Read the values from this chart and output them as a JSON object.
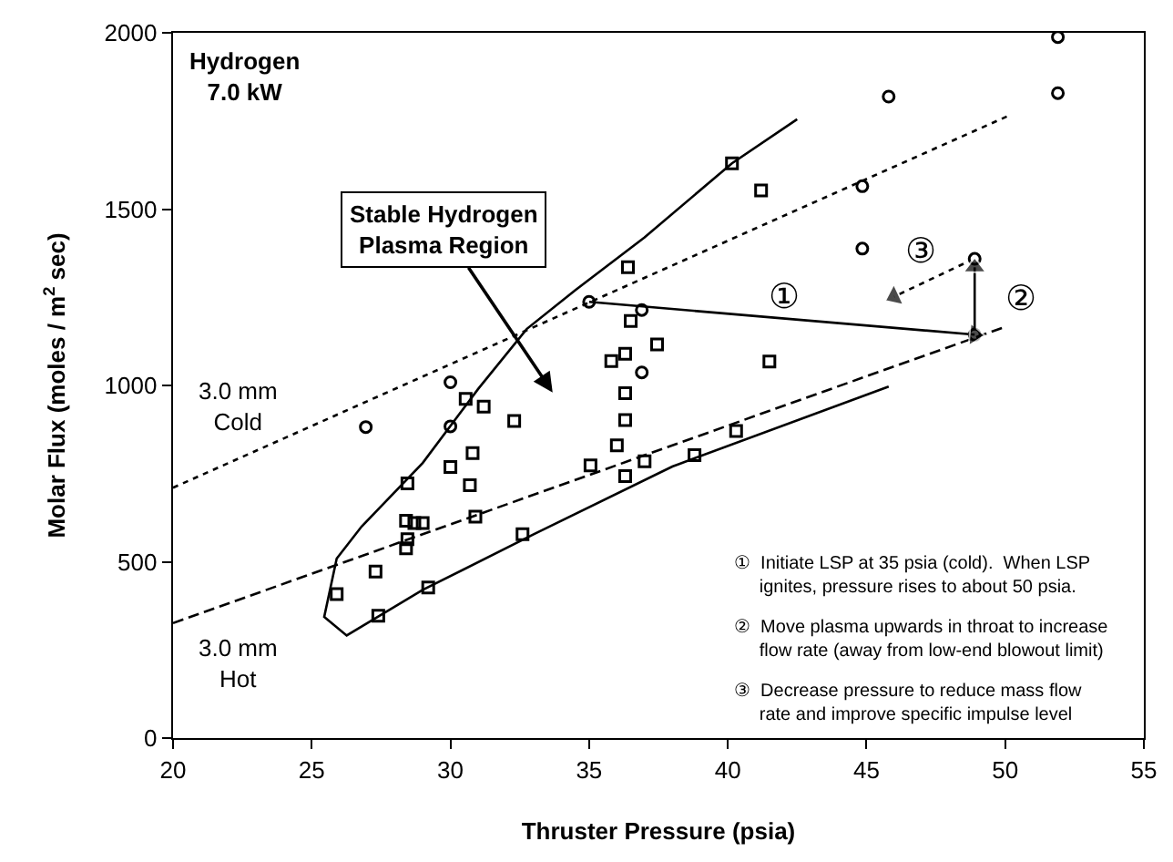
{
  "chart_data": {
    "type": "scatter",
    "xlabel": "Thruster Pressure (psia)",
    "ylabel": "Molar Flux (moles / m$^{2}$ sec)",
    "xlim": [
      20,
      55
    ],
    "xticks": [
      20,
      25,
      30,
      35,
      40,
      45,
      50,
      55
    ],
    "ylim": [
      0,
      2000
    ],
    "yticks": [
      0,
      500,
      1000,
      1500,
      2000
    ],
    "grid": false,
    "series": [
      {
        "marker": "square",
        "color": "#000000",
        "x": [
          25.9,
          27.3,
          27.4,
          28.45,
          28.4,
          28.7,
          29.0,
          28.45,
          28.4,
          29.2,
          30.0,
          30.7,
          30.8,
          30.9,
          32.3,
          32.6,
          30.55,
          31.2,
          35.05,
          36.3,
          36.0,
          36.3,
          37.0,
          38.8,
          40.3,
          36.3,
          36.3,
          36.4,
          36.5,
          35.8,
          37.45,
          41.5,
          40.15,
          41.2
        ],
        "values": [
          408,
          472,
          347,
          722,
          616,
          610,
          610,
          564,
          538,
          427,
          769,
          717,
          808,
          628,
          899,
          578,
          962,
          940,
          773,
          743,
          830,
          902,
          785,
          802,
          871,
          978,
          1090,
          1335,
          1183,
          1069,
          1116,
          1068,
          1630,
          1553
        ]
      },
      {
        "marker": "circle",
        "color": "#000000",
        "x": [
          26.95,
          30.0,
          30.0,
          35.0,
          36.9,
          36.9,
          44.85,
          44.85,
          45.8,
          51.9,
          51.9,
          48.9,
          48.9
        ],
        "values": [
          882,
          884,
          1009,
          1237,
          1214,
          1037,
          1388,
          1565,
          1819,
          1829,
          1988,
          1359,
          1144
        ]
      },
      {
        "type": "line",
        "line_style": "dotted",
        "marker": "none",
        "color": "#000000",
        "x": [
          20,
          50.1
        ],
        "values": [
          710,
          1764
        ]
      },
      {
        "type": "line",
        "line_style": "dashed",
        "marker": "none",
        "color": "#000000",
        "x": [
          20,
          50.0
        ],
        "values": [
          326,
          1166
        ]
      },
      {
        "type": "line",
        "line_style": "solid",
        "marker": "none",
        "color": "#000000",
        "x": [
          42.5,
          40.15,
          37,
          34.5,
          32.75,
          31,
          29,
          26.8,
          25.9,
          25.45,
          26.26,
          29,
          33,
          38,
          45.8
        ],
        "values": [
          1755,
          1630,
          1420,
          1270,
          1160,
          990,
          780,
          600,
          509,
          344,
          291,
          420,
          578,
          770,
          997
        ]
      },
      {
        "type": "line",
        "line_style": "solid",
        "marker": "triangle",
        "color": "#000000",
        "x": [
          35.0,
          48.9
        ],
        "values": [
          1237,
          1144
        ]
      },
      {
        "type": "line",
        "line_style": "solid",
        "marker": "triangle",
        "color": "#000000",
        "x": [
          48.9,
          48.9
        ],
        "values": [
          1160,
          1335
        ]
      },
      {
        "type": "line",
        "line_style": "dotted",
        "marker": "triangle",
        "color": "#000000",
        "x": [
          48.5,
          46.0
        ],
        "values": [
          1345,
          1252
        ]
      }
    ],
    "annotations": [
      "Hydrogen\n7.0 kW",
      "Stable Hydrogen\nPlasma Region",
      "3.0 mm\nCold",
      "3.0 mm\nHot",
      "①",
      "②",
      "③",
      "①  Initiate LSP at 35 psia (cold).  When LSP\n     ignites, pressure rises to about 50 psia.",
      "②  Move plasma upwards in throat to increase\n     flow rate (away from low-end blowout limit)",
      "③  Decrease pressure to reduce mass flow\n     rate and improve specific impulse level"
    ]
  }
}
